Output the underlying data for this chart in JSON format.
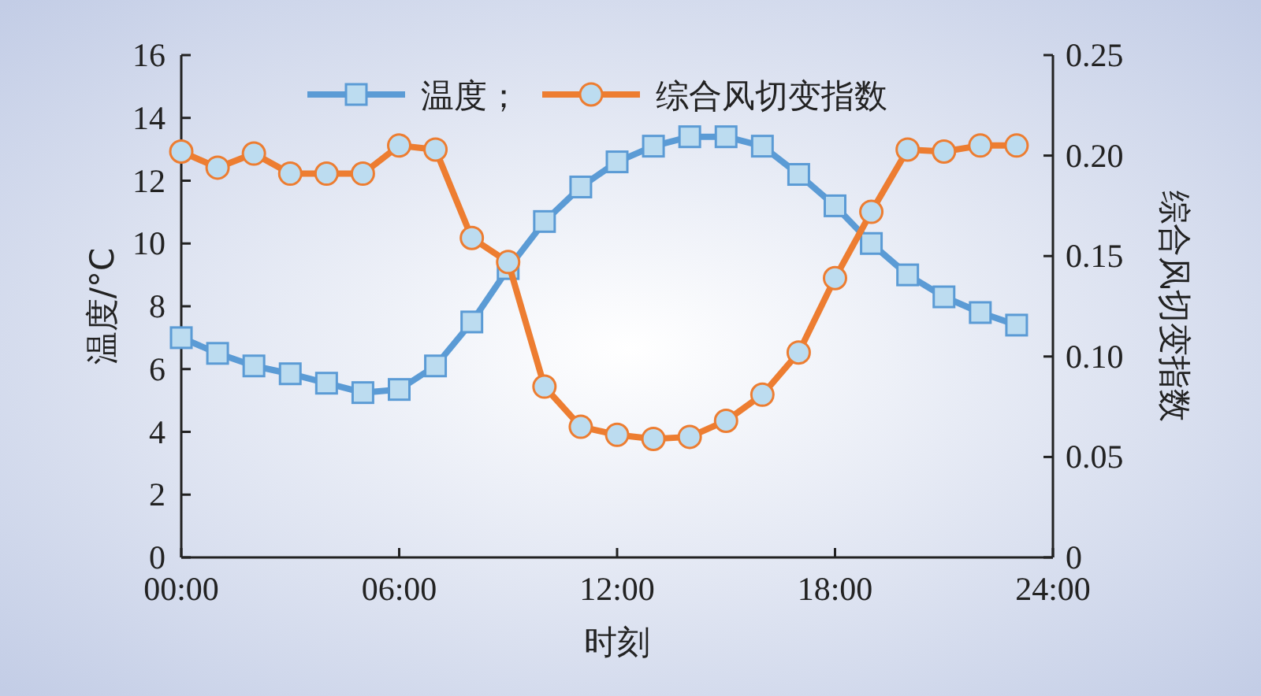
{
  "chart_data": {
    "type": "line",
    "xlabel": "时刻",
    "ylabel": "温度/°C",
    "y2label": "综合风切变指数",
    "x": [
      0,
      1,
      2,
      3,
      4,
      5,
      6,
      7,
      8,
      9,
      10,
      11,
      12,
      13,
      14,
      15,
      16,
      17,
      18,
      19,
      20,
      21,
      22,
      23
    ],
    "series": [
      {
        "name": "温度；",
        "color": "#5b9bd5",
        "marker": "square",
        "values": [
          7.0,
          6.5,
          6.1,
          5.85,
          5.55,
          5.25,
          5.35,
          6.1,
          7.5,
          9.2,
          10.7,
          11.8,
          12.6,
          13.1,
          13.4,
          13.4,
          13.1,
          12.2,
          11.2,
          10.0,
          9.0,
          8.3,
          7.8,
          7.4
        ]
      },
      {
        "name": "综合风切变指数",
        "color": "#ed7d31",
        "marker": "circle",
        "axis": "y2",
        "values": [
          0.202,
          0.194,
          0.201,
          0.191,
          0.191,
          0.191,
          0.205,
          0.203,
          0.159,
          0.147,
          0.085,
          0.065,
          0.061,
          0.059,
          0.06,
          0.068,
          0.081,
          0.102,
          0.139,
          0.172,
          0.203,
          0.202,
          0.205,
          0.205
        ]
      }
    ],
    "xlim": [
      0,
      24
    ],
    "xticks": [
      {
        "value": 0,
        "label": "00:00"
      },
      {
        "value": 6,
        "label": "06:00"
      },
      {
        "value": 12,
        "label": "12:00"
      },
      {
        "value": 18,
        "label": "18:00"
      },
      {
        "value": 24,
        "label": "24:00"
      }
    ],
    "ylim": [
      0,
      16
    ],
    "yticks": [
      0,
      2,
      4,
      6,
      8,
      10,
      12,
      14,
      16
    ],
    "y2lim": [
      0,
      0.25
    ],
    "y2ticks": [
      0,
      0.05,
      {
        "value": 0.1,
        "label": "0.10"
      },
      0.15,
      {
        "value": 0.2,
        "label": "0.20"
      },
      0.25
    ],
    "legend": "top",
    "grid": false,
    "line_style": "solid"
  }
}
